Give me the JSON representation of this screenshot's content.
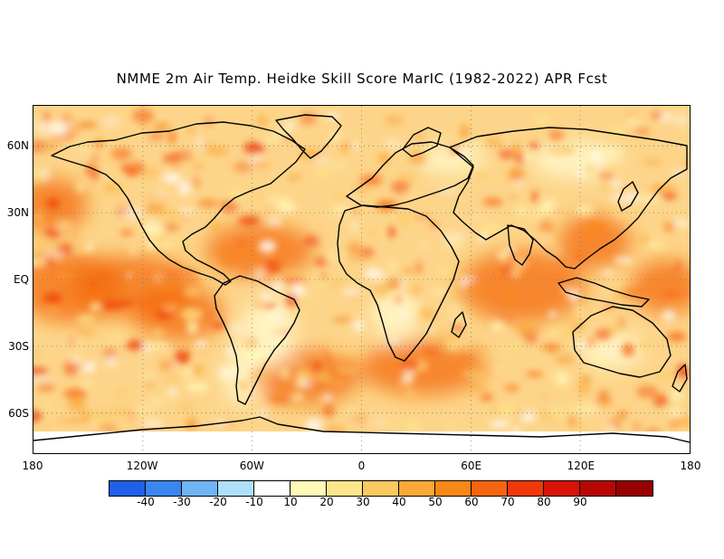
{
  "title": "NMME 2m Air Temp. Heidke Skill Score MarIC (1982-2022) APR Fcst",
  "map": {
    "lat_labels": [
      {
        "lat": 60,
        "text": "60N"
      },
      {
        "lat": 30,
        "text": "30N"
      },
      {
        "lat": 0,
        "text": "EQ"
      },
      {
        "lat": -30,
        "text": "30S"
      },
      {
        "lat": -60,
        "text": "60S"
      }
    ],
    "lon_labels": [
      {
        "lon": -180,
        "text": "180"
      },
      {
        "lon": -120,
        "text": "120W"
      },
      {
        "lon": -60,
        "text": "60W"
      },
      {
        "lon": 0,
        "text": "0"
      },
      {
        "lon": 60,
        "text": "60E"
      },
      {
        "lon": 120,
        "text": "120E"
      },
      {
        "lon": 180,
        "text": "180"
      }
    ],
    "lon_range": [
      -180,
      180
    ],
    "lat_range": [
      -78,
      78
    ],
    "gridlines": "dotted every 30 degrees"
  },
  "colorbar": {
    "colors": [
      "#2060e8",
      "#3a86f0",
      "#70b4f8",
      "#aee0fc",
      "#ffffff",
      "#fff8b8",
      "#fde68a",
      "#fcc860",
      "#fba838",
      "#f88818",
      "#f66410",
      "#f03808",
      "#d81404",
      "#b80604",
      "#980000"
    ],
    "labels": [
      "-40",
      "-30",
      "-20",
      "-10",
      "10",
      "20",
      "30",
      "40",
      "50",
      "60",
      "70",
      "80",
      "90"
    ]
  }
}
